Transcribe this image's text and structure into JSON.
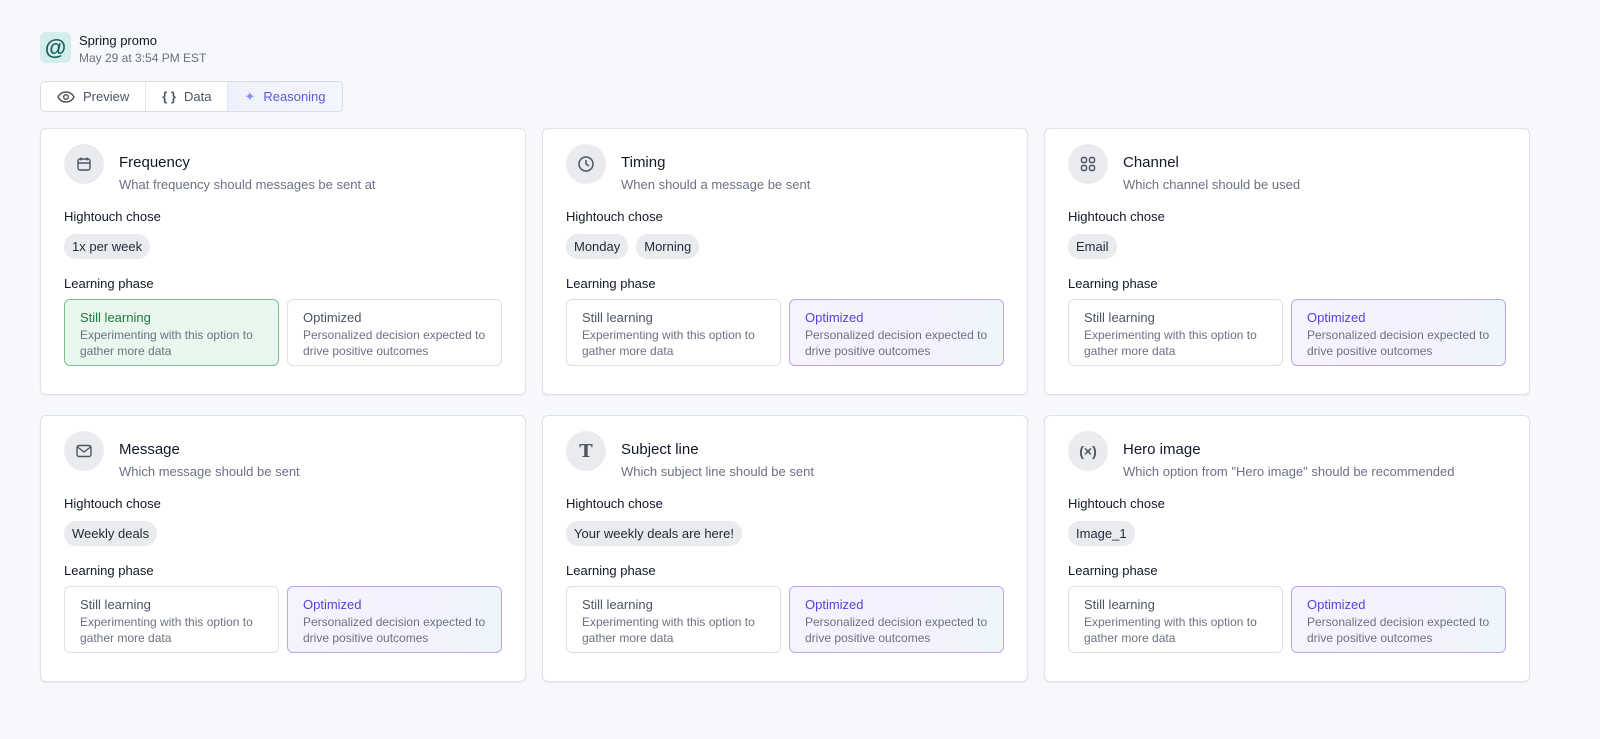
{
  "header": {
    "title": "Spring promo",
    "subtitle": "May 29 at 3:54 PM EST",
    "icon": "at-icon"
  },
  "tabs": [
    {
      "label": "Preview",
      "icon": "eye-icon"
    },
    {
      "label": "Data",
      "icon": "braces-icon"
    },
    {
      "label": "Reasoning",
      "icon": "sparkles-icon",
      "active": true
    }
  ],
  "labels": {
    "chose": "Hightouch chose",
    "phase": "Learning phase"
  },
  "phases": {
    "learning": {
      "title": "Still learning",
      "desc": "Experimenting with this option to gather more data"
    },
    "optimized": {
      "title": "Optimized",
      "desc": "Personalized decision expected to drive positive outcomes"
    }
  },
  "colors": {
    "learning_accent": "#1f7a3e",
    "optimized_accent": "#5b3fe0",
    "active_tab": "#5b5bd6"
  },
  "cards": [
    {
      "title": "Frequency",
      "subtitle": "What frequency should messages be sent at",
      "icon": "calendar-icon",
      "chips": [
        "1x per week"
      ],
      "phase": "learning"
    },
    {
      "title": "Timing",
      "subtitle": "When should a message be sent",
      "icon": "clock-icon",
      "chips": [
        "Monday",
        "Morning"
      ],
      "phase": "optimized"
    },
    {
      "title": "Channel",
      "subtitle": "Which channel should be used",
      "icon": "grid-icon",
      "chips": [
        "Email"
      ],
      "phase": "optimized"
    },
    {
      "title": "Message",
      "subtitle": "Which message should be sent",
      "icon": "mail-icon",
      "chips": [
        "Weekly deals"
      ],
      "phase": "optimized"
    },
    {
      "title": "Subject line",
      "subtitle": "Which subject line should be sent",
      "icon": "text-icon",
      "chips": [
        "Your weekly deals are here!"
      ],
      "phase": "optimized"
    },
    {
      "title": "Hero image",
      "subtitle": "Which option from \"Hero image\" should be recommended",
      "icon": "variable-icon",
      "chips": [
        "Image_1"
      ],
      "phase": "optimized"
    }
  ]
}
